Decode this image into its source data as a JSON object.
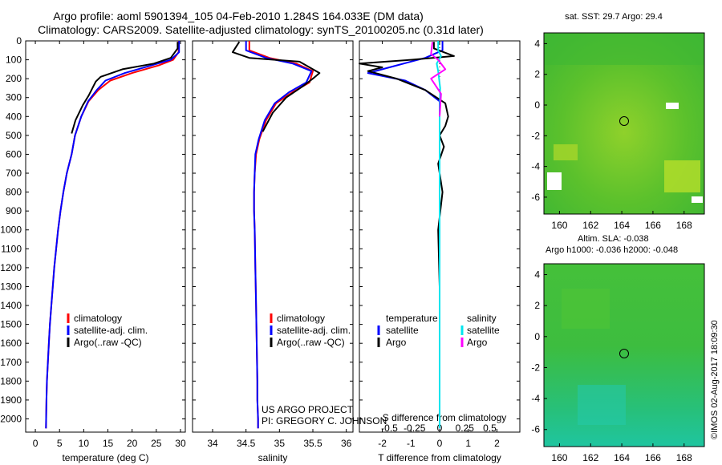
{
  "title_line1": "Argo profile: aoml 5901394_105 04-Feb-2010 1.284S 164.033E (DM data)",
  "title_line2": "Climatology: CARS2009. Satellite-adjusted climatology: synTS_20100205.nc (0.31d later)",
  "credit": "©IMOS 02-Aug-2017 18:09:30",
  "project_line1": "US ARGO PROJECT",
  "project_line2": "PI: GREGORY C. JOHNSON",
  "colors": {
    "clim": "#ff0000",
    "sat": "#0000ff",
    "argo": "#000000",
    "tdiff_sat": "#0000ff",
    "sdiff_sat": "#00e5ee",
    "sdiff_argo": "#ff00ff"
  },
  "legend": {
    "clim": "climatology",
    "sat": "satellite-adj. clim.",
    "argo": "Argo(..raw -QC)"
  },
  "diff_legend": {
    "temp_head": "temperature",
    "sal_head": "salinity",
    "sat": "satellite",
    "argo": "Argo"
  },
  "depth_ticks": [
    "0",
    "100",
    "200",
    "300",
    "400",
    "500",
    "600",
    "700",
    "800",
    "900",
    "1000",
    "1100",
    "1200",
    "1300",
    "1400",
    "1500",
    "1600",
    "1700",
    "1800",
    "1900",
    "2000"
  ],
  "map1": {
    "title": "sat. SST: 29.7  Argo: 29.4",
    "yticks": [
      "4",
      "2",
      "0",
      "-2",
      "-4",
      "-6"
    ],
    "xticks": [
      "160",
      "162",
      "164",
      "166",
      "168"
    ]
  },
  "map2": {
    "title1": "Altim. SLA: -0.038",
    "title2": "Argo h1000: -0.036 h2000: -0.048",
    "yticks": [
      "4",
      "2",
      "0",
      "-2",
      "-4",
      "-6"
    ],
    "xticks": [
      "160",
      "162",
      "164",
      "166",
      "168"
    ]
  },
  "chart_data": [
    {
      "type": "line",
      "title": "",
      "xlabel": "temperature (deg C)",
      "ylabel": "",
      "xlim": [
        -2,
        31
      ],
      "ylim": [
        2070,
        0
      ],
      "xticks": [
        "0",
        "5",
        "10",
        "15",
        "20",
        "25",
        "30"
      ],
      "series": [
        {
          "name": "climatology",
          "color": "#ff0000",
          "x": [
            29.6,
            29.6,
            28.5,
            25.5,
            20.0,
            15.5,
            13.0,
            11.0,
            9.5,
            8.2,
            7.5,
            6.5,
            5.8,
            5.2,
            4.7,
            4.3,
            3.9,
            3.6,
            3.3,
            3.0,
            2.8,
            2.6,
            2.4,
            2.3,
            2.2
          ],
          "y": [
            0,
            60,
            100,
            130,
            170,
            210,
            260,
            320,
            400,
            500,
            600,
            700,
            800,
            900,
            1000,
            1100,
            1200,
            1300,
            1400,
            1500,
            1600,
            1700,
            1800,
            1900,
            2050
          ]
        },
        {
          "name": "satellite-adj. clim.",
          "color": "#0000ff",
          "x": [
            29.7,
            29.7,
            28.0,
            24.0,
            18.5,
            14.5,
            12.7,
            10.9,
            9.5,
            8.2,
            7.5,
            6.5,
            5.8,
            5.2,
            4.7,
            4.3,
            3.9,
            3.6,
            3.3,
            3.0,
            2.8,
            2.6,
            2.4,
            2.3,
            2.2
          ],
          "y": [
            0,
            60,
            100,
            130,
            170,
            210,
            260,
            320,
            400,
            500,
            600,
            700,
            800,
            900,
            1000,
            1100,
            1200,
            1300,
            1400,
            1500,
            1600,
            1700,
            1800,
            1900,
            2050
          ]
        },
        {
          "name": "Argo(..raw -QC)",
          "color": "#000000",
          "x": [
            29.4,
            29.4,
            28.0,
            24.5,
            18.0,
            13.5,
            12.5,
            12.0,
            11.0,
            9.8,
            8.3,
            7.5
          ],
          "y": [
            5,
            40,
            90,
            120,
            150,
            190,
            215,
            240,
            290,
            340,
            420,
            490
          ]
        }
      ]
    },
    {
      "type": "line",
      "title": "",
      "xlabel": "salinity",
      "ylabel": "",
      "xlim": [
        33.7,
        36.1
      ],
      "ylim": [
        2070,
        0
      ],
      "xticks": [
        "34",
        "34.5",
        "35",
        "35.5",
        "36"
      ],
      "series": [
        {
          "name": "climatology",
          "color": "#ff0000",
          "x": [
            34.55,
            34.55,
            34.85,
            35.25,
            35.5,
            35.45,
            35.2,
            34.95,
            34.8,
            34.7,
            34.65,
            34.63,
            34.62,
            34.62,
            34.63,
            34.64,
            34.65,
            34.66,
            34.67,
            34.67,
            34.68,
            34.68
          ],
          "y": [
            0,
            50,
            90,
            120,
            160,
            220,
            270,
            330,
            420,
            520,
            600,
            700,
            800,
            900,
            1000,
            1200,
            1400,
            1600,
            1800,
            1900,
            2000,
            2050
          ]
        },
        {
          "name": "satellite-adj. clim.",
          "color": "#0000ff",
          "x": [
            34.5,
            34.5,
            34.8,
            35.2,
            35.48,
            35.4,
            35.15,
            34.93,
            34.78,
            34.69,
            34.64,
            34.63,
            34.62,
            34.62,
            34.63,
            34.64,
            34.65,
            34.66,
            34.67,
            34.67,
            34.68,
            34.68
          ],
          "y": [
            0,
            50,
            90,
            120,
            160,
            220,
            270,
            330,
            420,
            520,
            600,
            700,
            800,
            900,
            1000,
            1200,
            1400,
            1600,
            1800,
            1900,
            2000,
            2050
          ]
        },
        {
          "name": "Argo(..raw -QC)",
          "color": "#000000",
          "x": [
            34.4,
            34.3,
            34.55,
            35.3,
            35.4,
            35.5,
            35.6,
            35.5,
            35.35,
            35.1,
            34.9,
            34.75
          ],
          "y": [
            5,
            60,
            90,
            110,
            130,
            150,
            170,
            200,
            240,
            300,
            380,
            480
          ]
        }
      ]
    },
    {
      "type": "line",
      "title": "",
      "xlabel": "T difference from climatology",
      "ylabel": "",
      "xlim": [
        -2.8,
        2.8
      ],
      "ylim": [
        2070,
        0
      ],
      "xticks": [
        "-2",
        "-1",
        "0",
        "1",
        "2"
      ],
      "top_xlabel": "S difference from climatology",
      "top_xticks": [
        "-0.5",
        "-0.25",
        "0",
        "0.25",
        "0.5"
      ],
      "series": [
        {
          "name": "temperature satellite",
          "color": "#0000ff",
          "x": [
            0.1,
            0.1,
            -0.5,
            -1.5,
            -2.5,
            -1.2,
            -0.5,
            0.0,
            0.0,
            0.0
          ],
          "y": [
            0,
            50,
            90,
            130,
            170,
            210,
            260,
            320,
            500,
            2050
          ]
        },
        {
          "name": "temperature Argo",
          "color": "#000000",
          "x": [
            -0.2,
            -0.2,
            0.5,
            -1.0,
            -2.8,
            -2.0,
            -2.5,
            -1.5,
            -0.5,
            0.2,
            0.3,
            0.2,
            0.0,
            0.15,
            -0.05,
            0.1,
            -0.05,
            0.0
          ],
          "y": [
            5,
            40,
            80,
            100,
            120,
            140,
            160,
            200,
            260,
            330,
            400,
            450,
            500,
            560,
            650,
            800,
            1000,
            1300
          ]
        },
        {
          "name": "salinity satellite",
          "color": "#00e5ee",
          "x": [
            -0.05,
            -0.05,
            0.05,
            -0.1,
            -0.05,
            0.02,
            0.0,
            0.0
          ],
          "y": [
            0,
            50,
            80,
            120,
            160,
            250,
            400,
            2050
          ]
        },
        {
          "name": "salinity Argo",
          "color": "#ff00ff",
          "x": [
            -0.25,
            -0.3,
            -0.05,
            0.2,
            -0.3,
            0.05,
            0.0
          ],
          "y": [
            5,
            70,
            100,
            150,
            200,
            280,
            400
          ]
        }
      ]
    }
  ]
}
